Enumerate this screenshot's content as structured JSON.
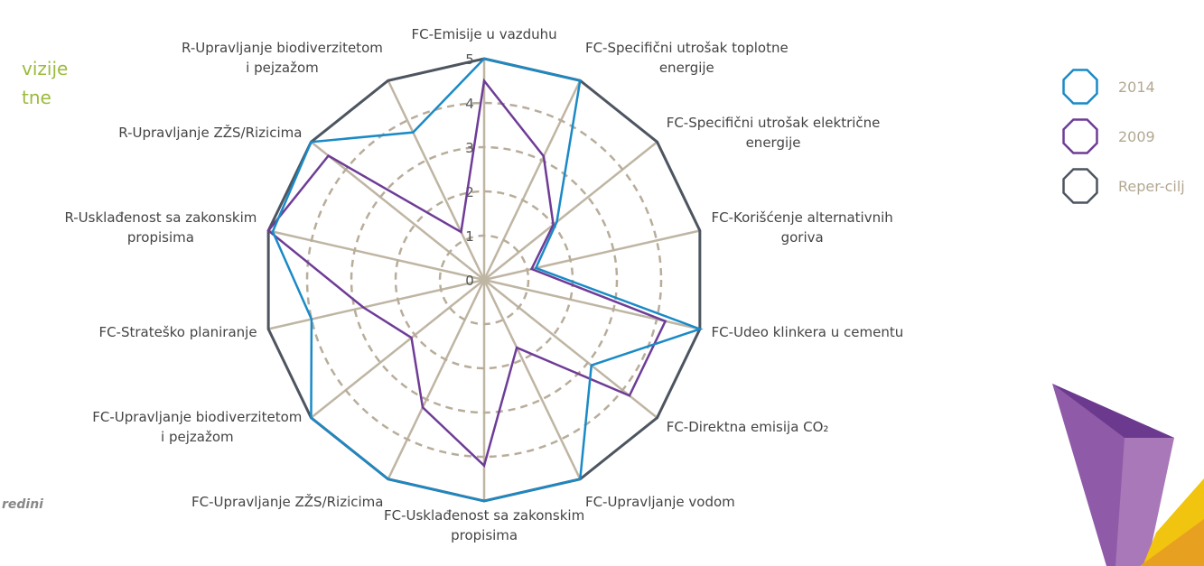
{
  "side_text": [
    "vizije",
    "tne",
    "redini"
  ],
  "chart_data": {
    "type": "radar",
    "categories": [
      "FC-Emisije u vazduhu",
      "FC-Specifični utrošak toplotne\nenergije",
      "FC-Specifični utrošak električne\nenergije",
      "FC-Korišćenje alternativnih\ngoriva",
      "FC-Udeo klinkera u cementu",
      "FC-Direktna emisija CO₂",
      "FC-Upravljanje vodom",
      "FC-Usklađenost sa zakonskim\npropisima",
      "FC-Upravljanje ZŽS/Rizicima",
      "FC-Upravljanje biodiverzitetom\ni pejzažom",
      "FC-Strateško planiranje",
      "R-Usklađenost sa zakonskim\npropisima",
      "R-Upravljanje ZŽS/Rizicima",
      "R-Upravljanje biodiverzitetom\ni pejzažom"
    ],
    "series": [
      {
        "name": "2014",
        "color": "#1a8ac6",
        "values": [
          5,
          5,
          2.1,
          1.2,
          5,
          3.1,
          5,
          5,
          5,
          5,
          4,
          4.9,
          5,
          3.7
        ]
      },
      {
        "name": "2009",
        "color": "#6e3c96",
        "values": [
          4.5,
          3.1,
          2.0,
          1.1,
          4.2,
          4.2,
          1.7,
          4.2,
          3.2,
          2.1,
          2.8,
          5,
          4.5,
          1.2
        ]
      },
      {
        "name": "Reper-cilj",
        "color": "#4d5560",
        "values": [
          5,
          5,
          5,
          5,
          5,
          5,
          5,
          5,
          5,
          5,
          5,
          5,
          5,
          5
        ]
      }
    ],
    "ylim": [
      0,
      5
    ],
    "yticks": [
      0,
      1,
      2,
      3,
      4,
      5
    ],
    "grid": true,
    "legend": "right"
  }
}
